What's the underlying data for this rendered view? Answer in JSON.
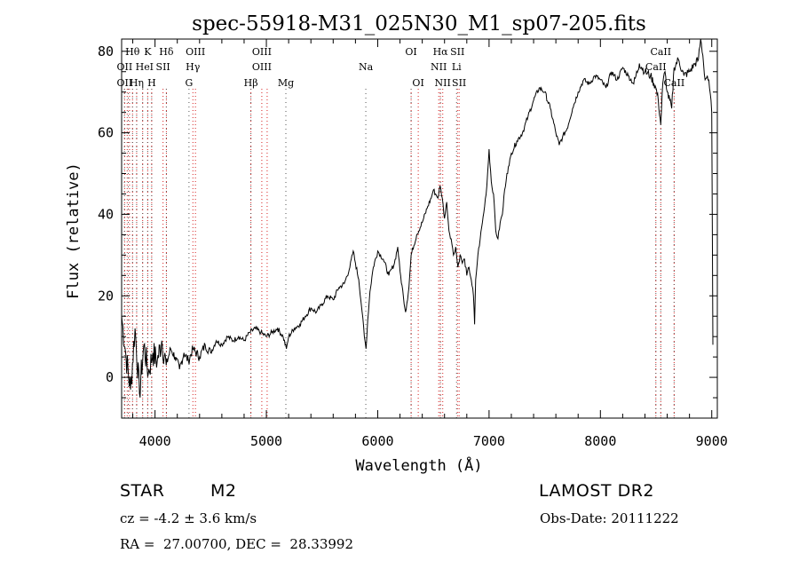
{
  "chart_data": {
    "type": "line",
    "title": "spec-55918-M31_025N30_M1_sp07-205.fits",
    "xlabel": "Wavelength (Å)",
    "ylabel": "Flux (relative)",
    "xlim": [
      3700,
      9050
    ],
    "ylim": [
      -10,
      83
    ],
    "xticks": [
      4000,
      5000,
      6000,
      7000,
      8000,
      9000
    ],
    "xtick_labels": [
      "4000",
      "5000",
      "6000",
      "7000",
      "8000",
      "9000"
    ],
    "yticks": [
      0,
      20,
      40,
      60,
      80
    ],
    "ytick_labels": [
      "0",
      "20",
      "40",
      "60",
      "80"
    ],
    "series": [
      {
        "color": "#000000",
        "x": [
          3700,
          3740,
          3780,
          3820,
          3860,
          3900,
          3940,
          3980,
          4020,
          4060,
          4100,
          4140,
          4180,
          4220,
          4260,
          4300,
          4340,
          4400,
          4450,
          4500,
          4550,
          4600,
          4650,
          4700,
          4750,
          4800,
          4850,
          4900,
          4950,
          5000,
          5050,
          5100,
          5150,
          5180,
          5200,
          5250,
          5300,
          5350,
          5400,
          5450,
          5500,
          5550,
          5600,
          5650,
          5700,
          5750,
          5780,
          5800,
          5830,
          5860,
          5880,
          5895,
          5910,
          5930,
          5960,
          6000,
          6050,
          6100,
          6150,
          6180,
          6200,
          6230,
          6250,
          6280,
          6300,
          6350,
          6400,
          6450,
          6480,
          6500,
          6520,
          6540,
          6560,
          6580,
          6600,
          6620,
          6640,
          6660,
          6680,
          6700,
          6720,
          6740,
          6760,
          6780,
          6800,
          6820,
          6840,
          6860,
          6870,
          6880,
          6900,
          6920,
          6940,
          6960,
          6980,
          7000,
          7020,
          7040,
          7060,
          7080,
          7100,
          7120,
          7140,
          7160,
          7180,
          7200,
          7250,
          7300,
          7350,
          7400,
          7450,
          7500,
          7550,
          7600,
          7630,
          7660,
          7700,
          7750,
          7800,
          7850,
          7900,
          7950,
          8000,
          8050,
          8100,
          8150,
          8200,
          8250,
          8300,
          8350,
          8400,
          8450,
          8498,
          8520,
          8542,
          8560,
          8580,
          8600,
          8640,
          8662,
          8700,
          8750,
          8800,
          8850,
          8880,
          8900,
          8920,
          8940,
          8960,
          8980,
          9000,
          9010
        ],
        "y": [
          15,
          5,
          -3,
          12,
          -4,
          8,
          1,
          6,
          4,
          9,
          3,
          7,
          5,
          2,
          6,
          4,
          7,
          5,
          8,
          6,
          9,
          8,
          10,
          9,
          10,
          9,
          11,
          12,
          11,
          10,
          11,
          12,
          10,
          7,
          10,
          12,
          13,
          15,
          17,
          16,
          18,
          20,
          19,
          22,
          23,
          27,
          31,
          28,
          24,
          16,
          10,
          7,
          14,
          21,
          27,
          31,
          29,
          25,
          28,
          32,
          26,
          20,
          16,
          22,
          30,
          35,
          38,
          42,
          44,
          46,
          45,
          44,
          47,
          44,
          39,
          43,
          36,
          34,
          30,
          32,
          27,
          30,
          28,
          29,
          25,
          27,
          24,
          20,
          13,
          24,
          30,
          34,
          38,
          42,
          47,
          56,
          48,
          45,
          36,
          34,
          38,
          40,
          46,
          50,
          52,
          55,
          58,
          60,
          64,
          68,
          71,
          70,
          66,
          60,
          57,
          59,
          61,
          66,
          70,
          73,
          72,
          74,
          73,
          71,
          75,
          73,
          76,
          74,
          72,
          77,
          75,
          74,
          71,
          68,
          62,
          72,
          75,
          70,
          66,
          76,
          78,
          74,
          75,
          77,
          78,
          83,
          79,
          73,
          74,
          71,
          65,
          8
        ]
      }
    ],
    "line_labels": [
      {
        "label": "Hθ",
        "x": 3798,
        "row": 0
      },
      {
        "label": "OII",
        "x": 3727,
        "row": 1
      },
      {
        "label": "OII",
        "x": 3727,
        "row": 2
      },
      {
        "label": "K",
        "x": 3934,
        "row": 0
      },
      {
        "label": "He",
        "x": 3889,
        "row": 1
      },
      {
        "label": "Hη",
        "x": 3835,
        "row": 2
      },
      {
        "label": "Hδ",
        "x": 4102,
        "row": 0
      },
      {
        "label": "I",
        "x": 3970,
        "row": 1
      },
      {
        "label": "H",
        "x": 3970,
        "row": 2
      },
      {
        "label": "SII",
        "x": 4072,
        "row": 1
      },
      {
        "label": "OIII",
        "x": 4363,
        "row": 0
      },
      {
        "label": "Hγ",
        "x": 4340,
        "row": 1
      },
      {
        "label": "G",
        "x": 4305,
        "row": 2
      },
      {
        "label": "OIII",
        "x": 4959,
        "row": 0
      },
      {
        "label": "OIII",
        "x": 4959,
        "row": 1
      },
      {
        "label": "Hβ",
        "x": 4861,
        "row": 2
      },
      {
        "label": "Mg",
        "x": 5175,
        "row": 2
      },
      {
        "label": "Na",
        "x": 5893,
        "row": 1
      },
      {
        "label": "OI",
        "x": 6300,
        "row": 0
      },
      {
        "label": "OI",
        "x": 6364,
        "row": 2
      },
      {
        "label": "Hα",
        "x": 6563,
        "row": 0
      },
      {
        "label": "SII",
        "x": 6716,
        "row": 0
      },
      {
        "label": "NII",
        "x": 6548,
        "row": 1
      },
      {
        "label": "Li",
        "x": 6708,
        "row": 1
      },
      {
        "label": "NII",
        "x": 6584,
        "row": 2
      },
      {
        "label": "SII",
        "x": 6731,
        "row": 2
      },
      {
        "label": "CaII",
        "x": 8542,
        "row": 0
      },
      {
        "label": "CaII",
        "x": 8498,
        "row": 1
      },
      {
        "label": "CaII",
        "x": 8662,
        "row": 2
      }
    ],
    "red_dotted_lines": [
      3727,
      3750,
      3771,
      3798,
      3835,
      3889,
      3934,
      3970,
      4072,
      4102,
      4340,
      4363,
      4861,
      4959,
      5007,
      6300,
      6364,
      6548,
      6563,
      6584,
      6716,
      6731,
      8498,
      8542,
      8662
    ],
    "black_dotted_lines": [
      3725,
      3760,
      3798,
      3835,
      3889,
      3934,
      3970,
      4102,
      4305,
      4861,
      5175,
      5893,
      6300,
      6563,
      6708,
      8498,
      8542,
      8662
    ]
  },
  "info": {
    "object_class": "STAR",
    "subclass": "M2",
    "survey": "LAMOST DR2",
    "cz": "cz = -4.2 ± 3.6 km/s",
    "obs_date": "Obs-Date: 20111222",
    "coords": "RA =  27.00700, DEC =  28.33992"
  }
}
